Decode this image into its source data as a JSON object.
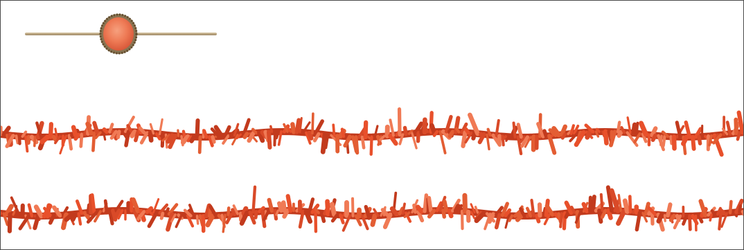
{
  "colors": {
    "background": "#ffffff",
    "frame": "#4a4a4a",
    "coral": "#e8502b",
    "coral_dark": "#c23a1d",
    "coral_light": "#f07a55",
    "gold": "#b9a27c",
    "gold_dark": "#7c6646"
  },
  "objects": [
    {
      "name": "coral-brooch",
      "kind": "bar-pin-with-oval-coral-cabochon"
    },
    {
      "name": "coral-strand-top",
      "kind": "branch-coral-necklace-strand"
    },
    {
      "name": "coral-strand-bottom",
      "kind": "branch-coral-necklace-strand"
    }
  ]
}
